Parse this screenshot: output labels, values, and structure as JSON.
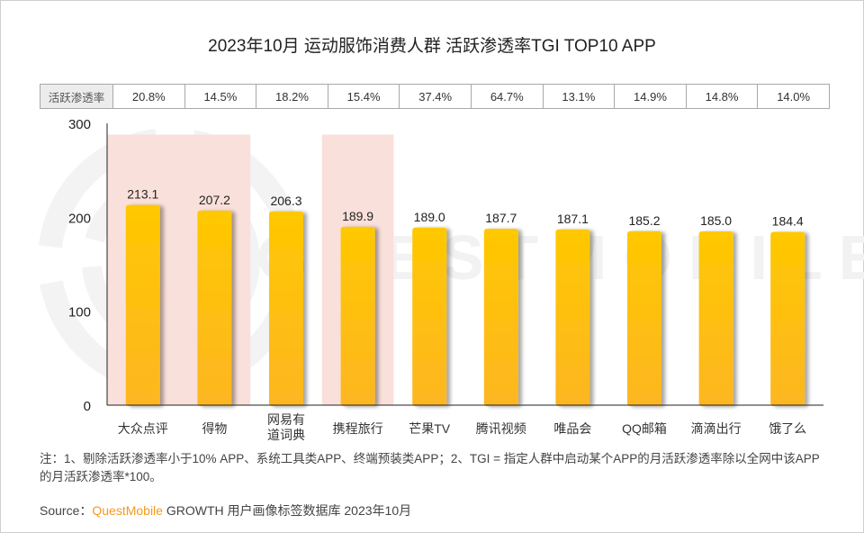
{
  "title": "2023年10月 运动服饰消费人群 活跃渗透率TGI TOP10 APP",
  "rate_table": {
    "header": "活跃渗透率",
    "values": [
      "20.8%",
      "14.5%",
      "18.2%",
      "15.4%",
      "37.4%",
      "64.7%",
      "13.1%",
      "14.9%",
      "14.8%",
      "14.0%"
    ]
  },
  "chart_data": {
    "type": "bar",
    "title": "2023年10月 运动服饰消费人群 活跃渗透率TGI TOP10 APP",
    "xlabel": "",
    "ylabel": "",
    "categories": [
      "大众点评",
      "得物",
      "网易有道词典",
      "携程旅行",
      "芒果TV",
      "腾讯视频",
      "唯品会",
      "QQ邮箱",
      "滴滴出行",
      "饿了么"
    ],
    "category_lines": [
      [
        "大众点评"
      ],
      [
        "得物"
      ],
      [
        "网易有",
        "道词典"
      ],
      [
        "携程旅行"
      ],
      [
        "芒果TV"
      ],
      [
        "腾讯视频"
      ],
      [
        "唯品会"
      ],
      [
        "QQ邮箱"
      ],
      [
        "滴滴出行"
      ],
      [
        "饿了么"
      ]
    ],
    "values": [
      213.1,
      207.2,
      206.3,
      189.9,
      189.0,
      187.7,
      187.1,
      185.2,
      185.0,
      184.4
    ],
    "data_labels": [
      "213.1",
      "207.2",
      "206.3",
      "189.9",
      "189.0",
      "187.7",
      "187.1",
      "185.2",
      "185.0",
      "184.4"
    ],
    "ylim": [
      0,
      300
    ],
    "yticks": [
      0,
      100,
      200,
      300
    ],
    "grid": false,
    "legend": "none",
    "highlighted_categories": [
      "大众点评",
      "得物",
      "携程旅行"
    ],
    "highlight_top_value": 288,
    "colors": {
      "bar_top": "#ffc800",
      "bar_bottom": "#fdb622",
      "highlight": "#fae0da",
      "axis": "#222222"
    }
  },
  "watermark": "QUESTMOBILE",
  "note": "注：1、剔除活跃渗透率小于10% APP、系统工具类APP、终端预装类APP；2、TGI = 指定人群中启动某个APP的月活跃渗透率除以全网中该APP的月活跃渗透率*100。",
  "source": {
    "label": "Source：",
    "brand": "QuestMobile",
    "text": " GROWTH 用户画像标签数据库 2023年10月"
  }
}
